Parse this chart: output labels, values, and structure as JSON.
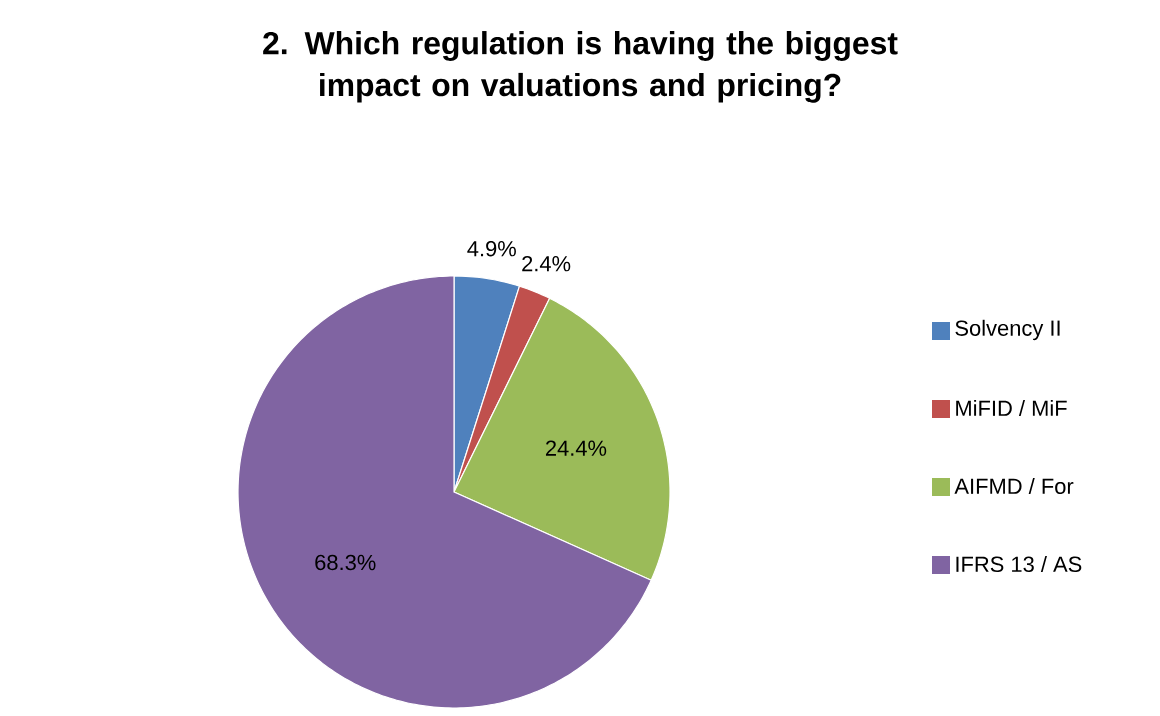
{
  "chart_data": {
    "type": "pie",
    "title": "2. Which regulation is having the biggest impact on valuations and pricing?",
    "categories": [
      "Solvency II",
      "MiFID / MiF",
      "AIFMD / For",
      "IFRS 13 / AS"
    ],
    "values": [
      4.9,
      2.4,
      24.4,
      68.3
    ],
    "value_labels": [
      "4.9%",
      "2.4%",
      "24.4%",
      "68.3%"
    ],
    "colors": [
      "#4f81bd",
      "#c0504d",
      "#9bbb59",
      "#8064a2"
    ],
    "legend": "right"
  }
}
